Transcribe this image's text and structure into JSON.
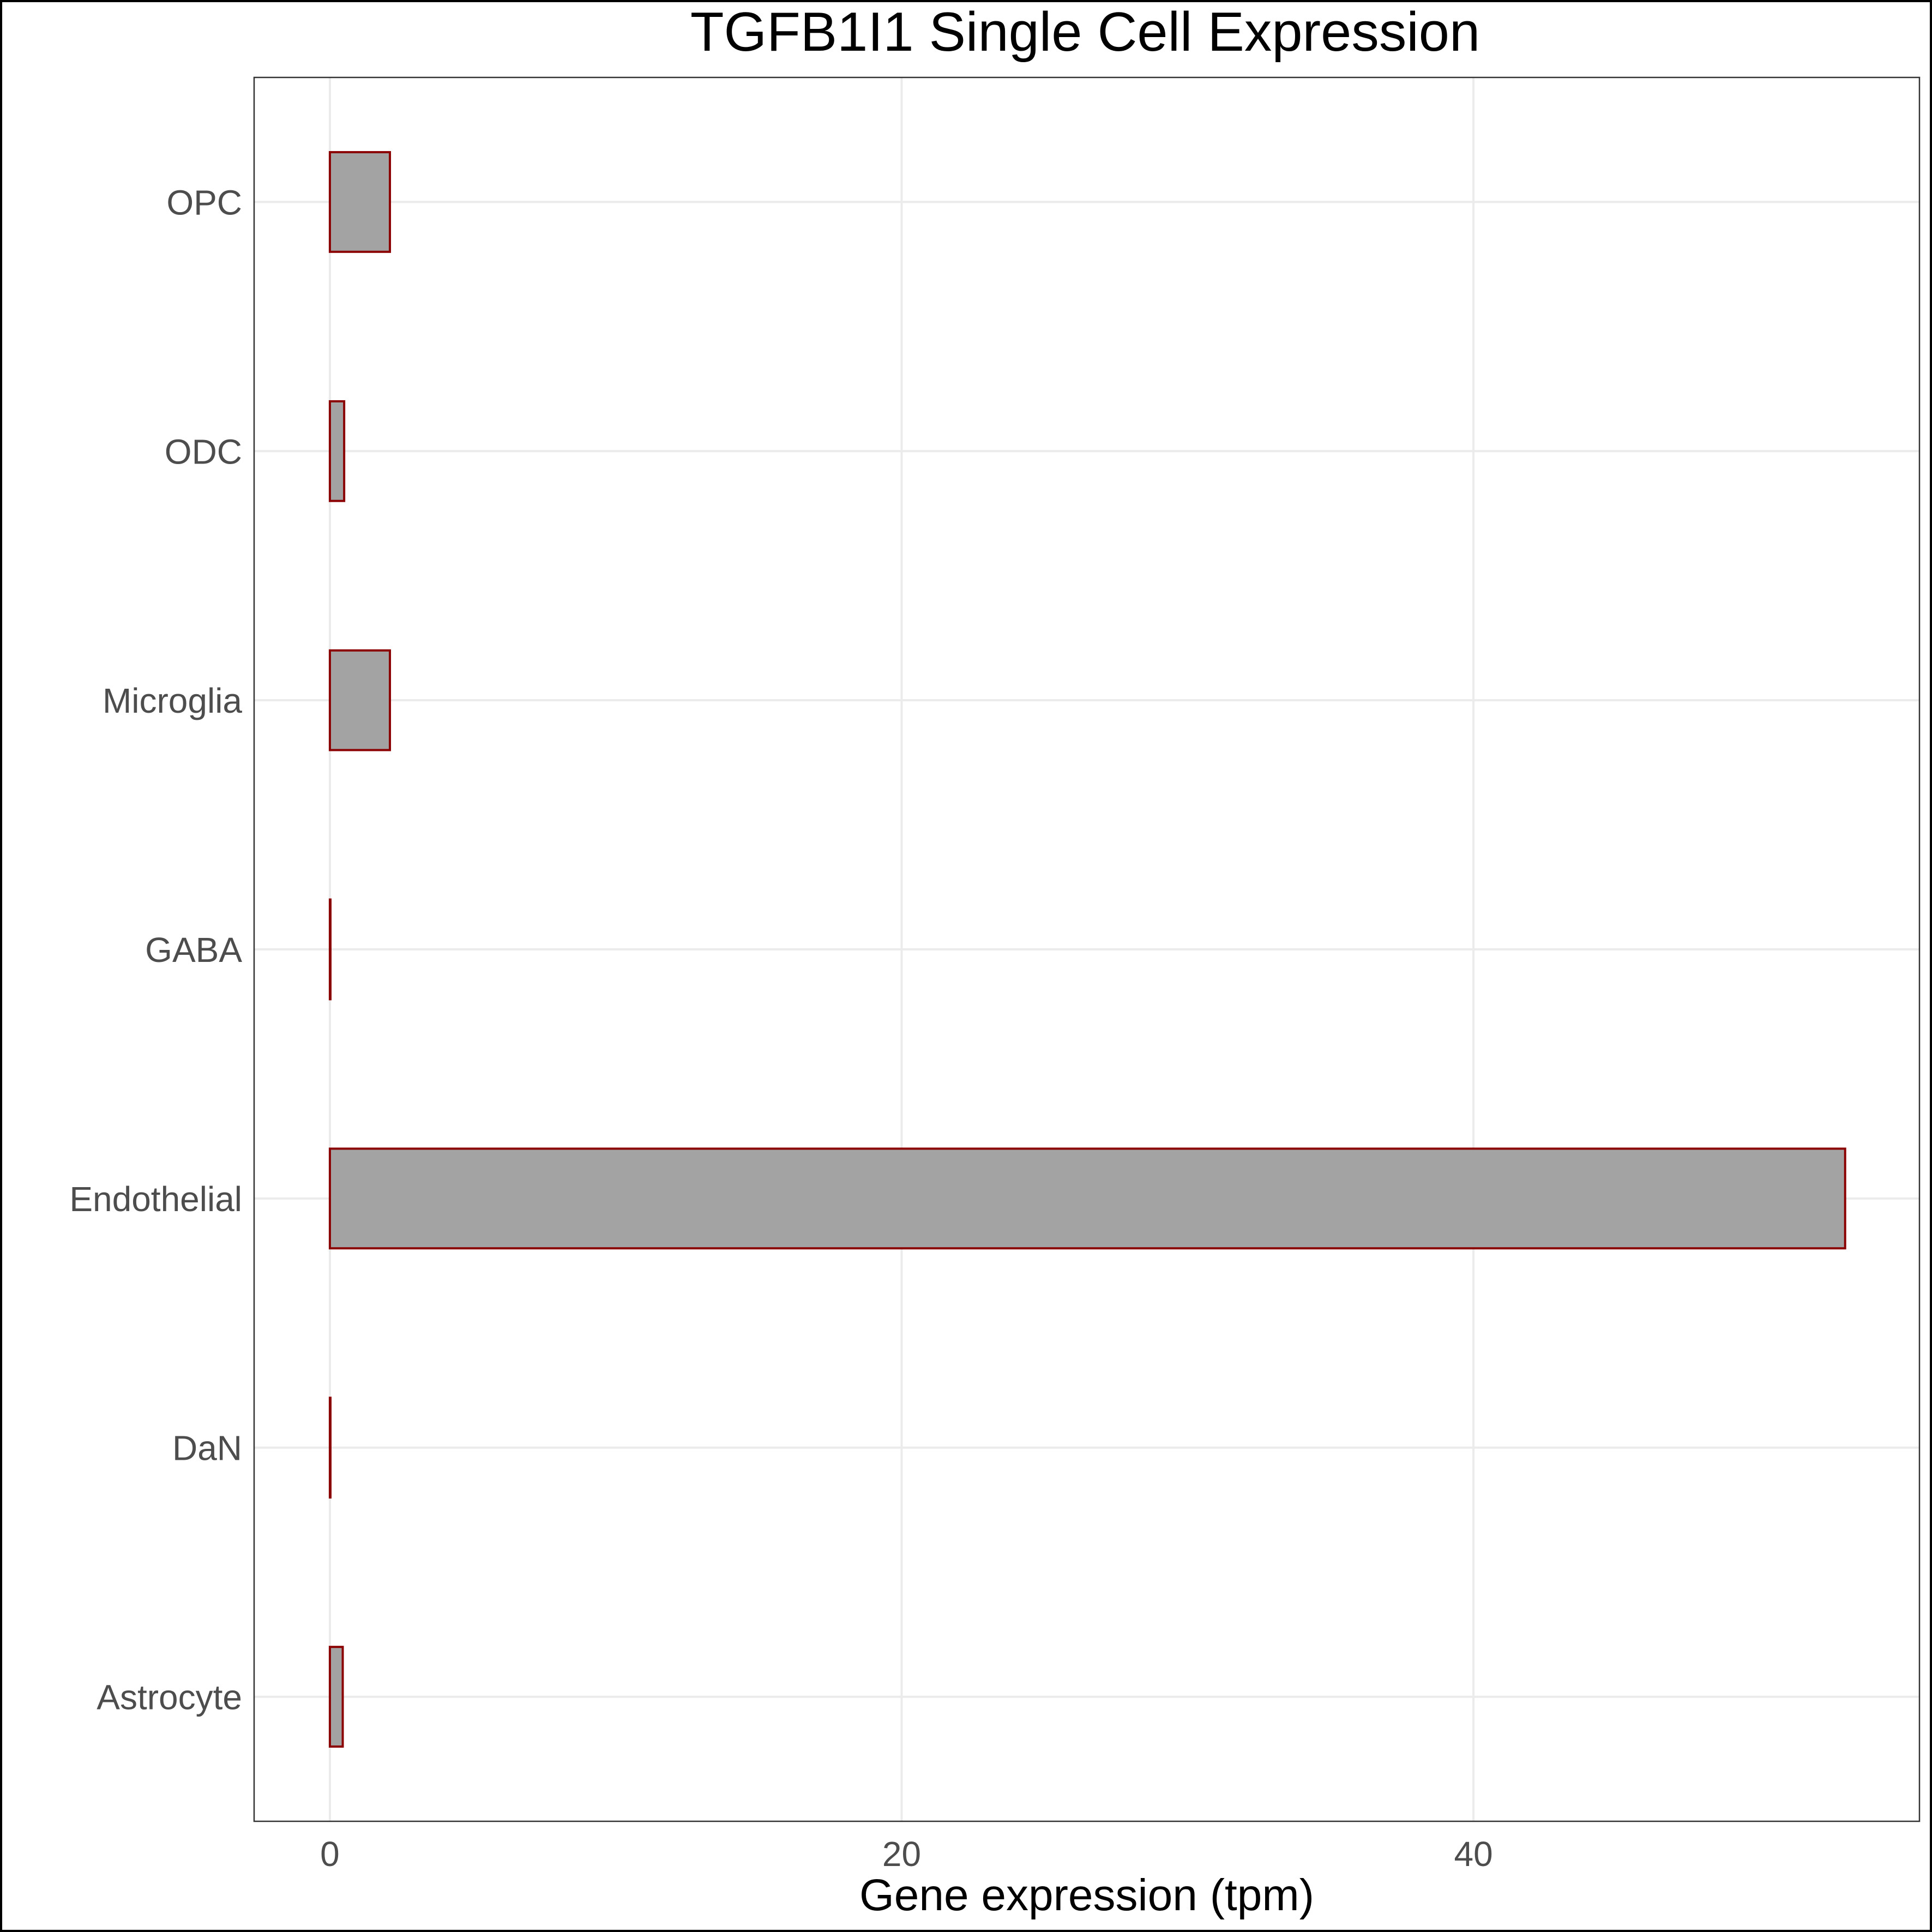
{
  "chart_data": {
    "type": "bar",
    "orientation": "horizontal",
    "title": "TGFB1I1 Single Cell Expression",
    "xlabel": "Gene expression (tpm)",
    "ylabel": "",
    "categories": [
      "Astrocyte",
      "DaN",
      "Endothelial",
      "GABA",
      "Microglia",
      "ODC",
      "OPC"
    ],
    "values": [
      0.45,
      0.02,
      53.0,
      0.02,
      2.1,
      0.5,
      2.1
    ],
    "xlim": [
      -2.65,
      55.6
    ],
    "x_ticks": [
      0,
      20,
      40
    ],
    "x_tick_labels": [
      "0",
      "20",
      "40"
    ],
    "grid": true,
    "colors": {
      "bar_fill": "#a3a3a3",
      "bar_stroke": "#8b0000",
      "grid": "#ebebeb",
      "panel_border": "#333333"
    }
  }
}
